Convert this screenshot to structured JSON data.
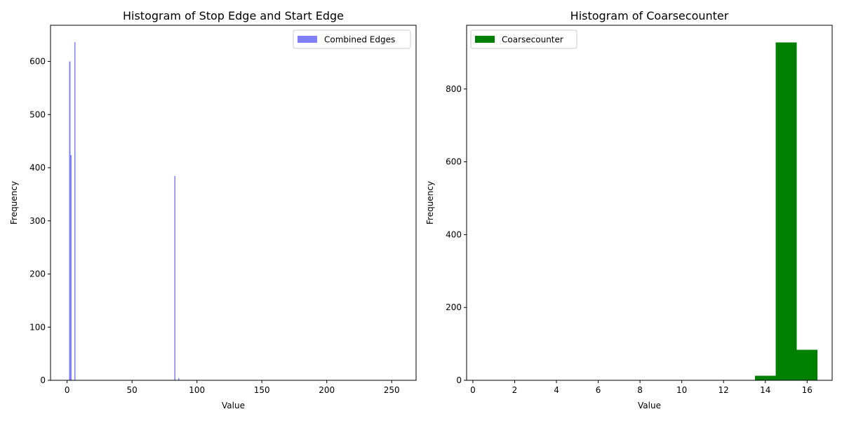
{
  "chart_data": [
    {
      "type": "bar",
      "title": "Histogram of Stop Edge and Start Edge",
      "xlabel": "Value",
      "ylabel": "Frequency",
      "xlim": [
        -12.8,
        268.8
      ],
      "ylim": [
        0,
        668
      ],
      "xticks": [
        0,
        50,
        100,
        150,
        200,
        250
      ],
      "yticks": [
        0,
        100,
        200,
        300,
        400,
        500,
        600
      ],
      "grid": false,
      "legend": {
        "placement": "upper-right",
        "entries": [
          "Combined Edges"
        ]
      },
      "series": [
        {
          "name": "Combined Edges",
          "color": "#8080ff",
          "bin_width": 1,
          "bins": [
            {
              "x": 1,
              "y": 0
            },
            {
              "x": 2,
              "y": 600
            },
            {
              "x": 3,
              "y": 424
            },
            {
              "x": 4,
              "y": 0
            },
            {
              "x": 6,
              "y": 636
            },
            {
              "x": 83,
              "y": 384
            },
            {
              "x": 86,
              "y": 4
            }
          ]
        }
      ]
    },
    {
      "type": "bar",
      "title": "Histogram of Coarsecounter",
      "xlabel": "Value",
      "ylabel": "Frequency",
      "xlim": [
        -0.3,
        17.2
      ],
      "ylim": [
        0,
        975
      ],
      "xticks": [
        0,
        2,
        4,
        6,
        8,
        10,
        12,
        14,
        16
      ],
      "yticks": [
        0,
        200,
        400,
        600,
        800
      ],
      "grid": false,
      "legend": {
        "placement": "upper-left",
        "entries": [
          "Coarsecounter"
        ]
      },
      "series": [
        {
          "name": "Coarsecounter",
          "color": "#008000",
          "bin_width": 1,
          "bins": [
            {
              "x": 0,
              "y": 0
            },
            {
              "x": 1,
              "y": 0
            },
            {
              "x": 2,
              "y": 0
            },
            {
              "x": 3,
              "y": 0
            },
            {
              "x": 4,
              "y": 0
            },
            {
              "x": 5,
              "y": 0
            },
            {
              "x": 6,
              "y": 0
            },
            {
              "x": 7,
              "y": 0
            },
            {
              "x": 8,
              "y": 0
            },
            {
              "x": 9,
              "y": 0
            },
            {
              "x": 10,
              "y": 0
            },
            {
              "x": 11,
              "y": 0
            },
            {
              "x": 12,
              "y": 0
            },
            {
              "x": 13,
              "y": 1
            },
            {
              "x": 14,
              "y": 13
            },
            {
              "x": 15,
              "y": 928
            },
            {
              "x": 16,
              "y": 84
            }
          ]
        }
      ]
    }
  ]
}
